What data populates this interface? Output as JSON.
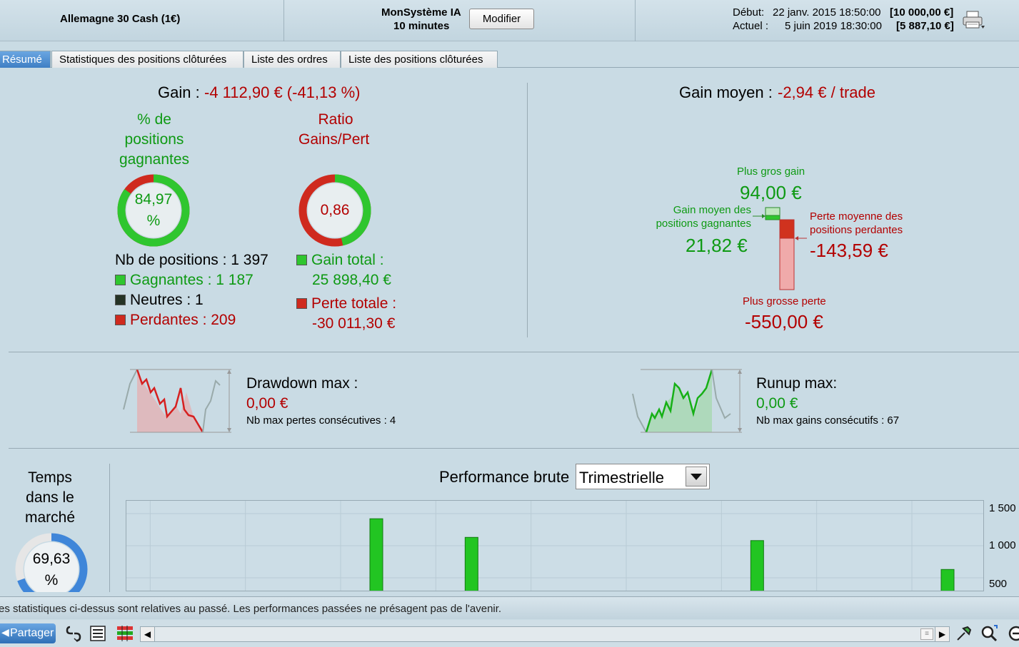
{
  "header": {
    "instrument": "Allemagne 30 Cash (1€)",
    "system_name": "MonSystème IA",
    "system_period": "10 minutes",
    "modify_label": "Modifier",
    "start_label": "Début:",
    "start_date": "22 janv. 2015 18:50:00",
    "start_value": "[10 000,00 €]",
    "current_label": "Actuel :",
    "current_date": "5 juin 2019 18:30:00",
    "current_value": "[5 887,10 €]"
  },
  "tabs": [
    {
      "label": "Résumé",
      "active": true
    },
    {
      "label": "Statistiques des positions clôturées",
      "active": false
    },
    {
      "label": "Liste des ordres",
      "active": false
    },
    {
      "label": "Liste des positions clôturées",
      "active": false
    }
  ],
  "summary": {
    "gain_label": "Gain :",
    "gain_value": "-4 112,90 € (-41,13 %)",
    "win_pct_title": [
      "% de",
      "positions",
      "gagnantes"
    ],
    "win_pct_value": "84,97",
    "win_pct_unit": "%",
    "win_pct_fraction": 0.8497,
    "ratio_title": [
      "Ratio",
      "Gains/Pert"
    ],
    "ratio_value": "0,86",
    "ratio_fraction": 0.463,
    "positions_label": "Nb de positions : 1 397",
    "winners_label": "Gagnantes : 1 187",
    "neutral_label": "Neutres : 1",
    "losers_label": "Perdantes : 209",
    "total_gain_label": "Gain total :",
    "total_gain_value": "25 898,40 €",
    "total_loss_label": "Perte totale :",
    "total_loss_value": "-30 011,30 €"
  },
  "avg_gain": {
    "label": "Gain moyen :",
    "value": "-2,94 € / trade",
    "max_gain_label": "Plus gros gain",
    "max_gain_value": "94,00 €",
    "avg_win_label": [
      "Gain moyen des",
      "positions gagnantes"
    ],
    "avg_win_value": "21,82 €",
    "avg_loss_label": [
      "Perte moyenne des",
      "positions perdantes"
    ],
    "avg_loss_value": "-143,59 €",
    "max_loss_label": "Plus grosse perte",
    "max_loss_value": "-550,00 €"
  },
  "drawdown": {
    "title": "Drawdown max :",
    "value": "0,00 €",
    "detail": "Nb max pertes consécutives : 4"
  },
  "runup": {
    "title": "Runup max:",
    "value": "0,00 €",
    "detail": "Nb max gains consécutifs : 67"
  },
  "market_time": {
    "title": [
      "Temps",
      "dans le",
      "marché"
    ],
    "value": "69,63",
    "unit": "%",
    "fraction": 0.6963
  },
  "performance": {
    "title": "Performance brute",
    "period": "Trimestrielle"
  },
  "chart_data": {
    "type": "bar",
    "title": "Performance brute",
    "xlabel": "",
    "ylabel": "",
    "y_ticks": [
      "1 500",
      "1 000",
      "500"
    ],
    "ylim": [
      300,
      1700
    ],
    "grid": true,
    "values": [
      1420,
      1130,
      1080,
      630
    ],
    "bar_slots": [
      10.5,
      14.5,
      26.5,
      34.5
    ],
    "slot_count": 36
  },
  "footer": {
    "disclaimer": "es statistiques ci-dessus sont relatives au passé. Les performances passées ne présagent pas de l'avenir.",
    "share_label": "Partager"
  },
  "colors": {
    "green": "#0e9a13",
    "red": "#b30000",
    "blue_accent": "#3f7fc4"
  }
}
